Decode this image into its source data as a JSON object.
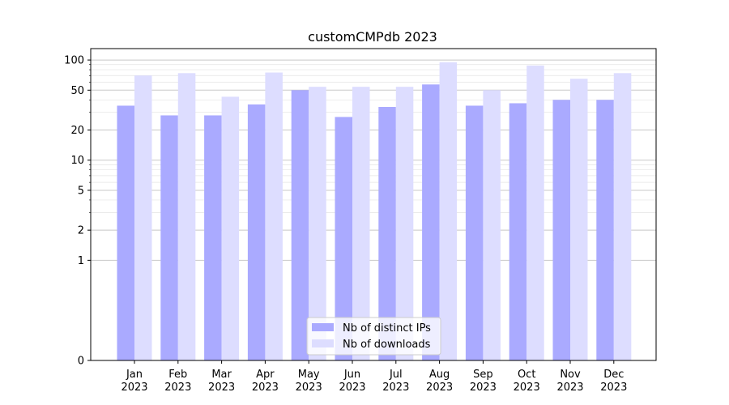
{
  "chart_data": {
    "type": "bar",
    "title": "customCMPdb 2023",
    "xlabel": "",
    "ylabel": "",
    "yscale": "symlog",
    "ylim": [
      0,
      130
    ],
    "grid": true,
    "categories": [
      "Jan\n2023",
      "Feb\n2023",
      "Mar\n2023",
      "Apr\n2023",
      "May\n2023",
      "Jun\n2023",
      "Jul\n2023",
      "Aug\n2023",
      "Sep\n2023",
      "Oct\n2023",
      "Nov\n2023",
      "Dec\n2023"
    ],
    "yticks": [
      0,
      1,
      2,
      5,
      10,
      20,
      50,
      100
    ],
    "series": [
      {
        "name": "Nb of distinct IPs",
        "color": "#aaaaff",
        "values": [
          35,
          28,
          28,
          36,
          50,
          27,
          34,
          57,
          35,
          37,
          40,
          40
        ]
      },
      {
        "name": "Nb of downloads",
        "color": "#ddddff",
        "values": [
          70,
          74,
          43,
          75,
          54,
          54,
          54,
          95,
          50,
          88,
          65,
          74
        ]
      }
    ],
    "legend_position": "lower center"
  }
}
